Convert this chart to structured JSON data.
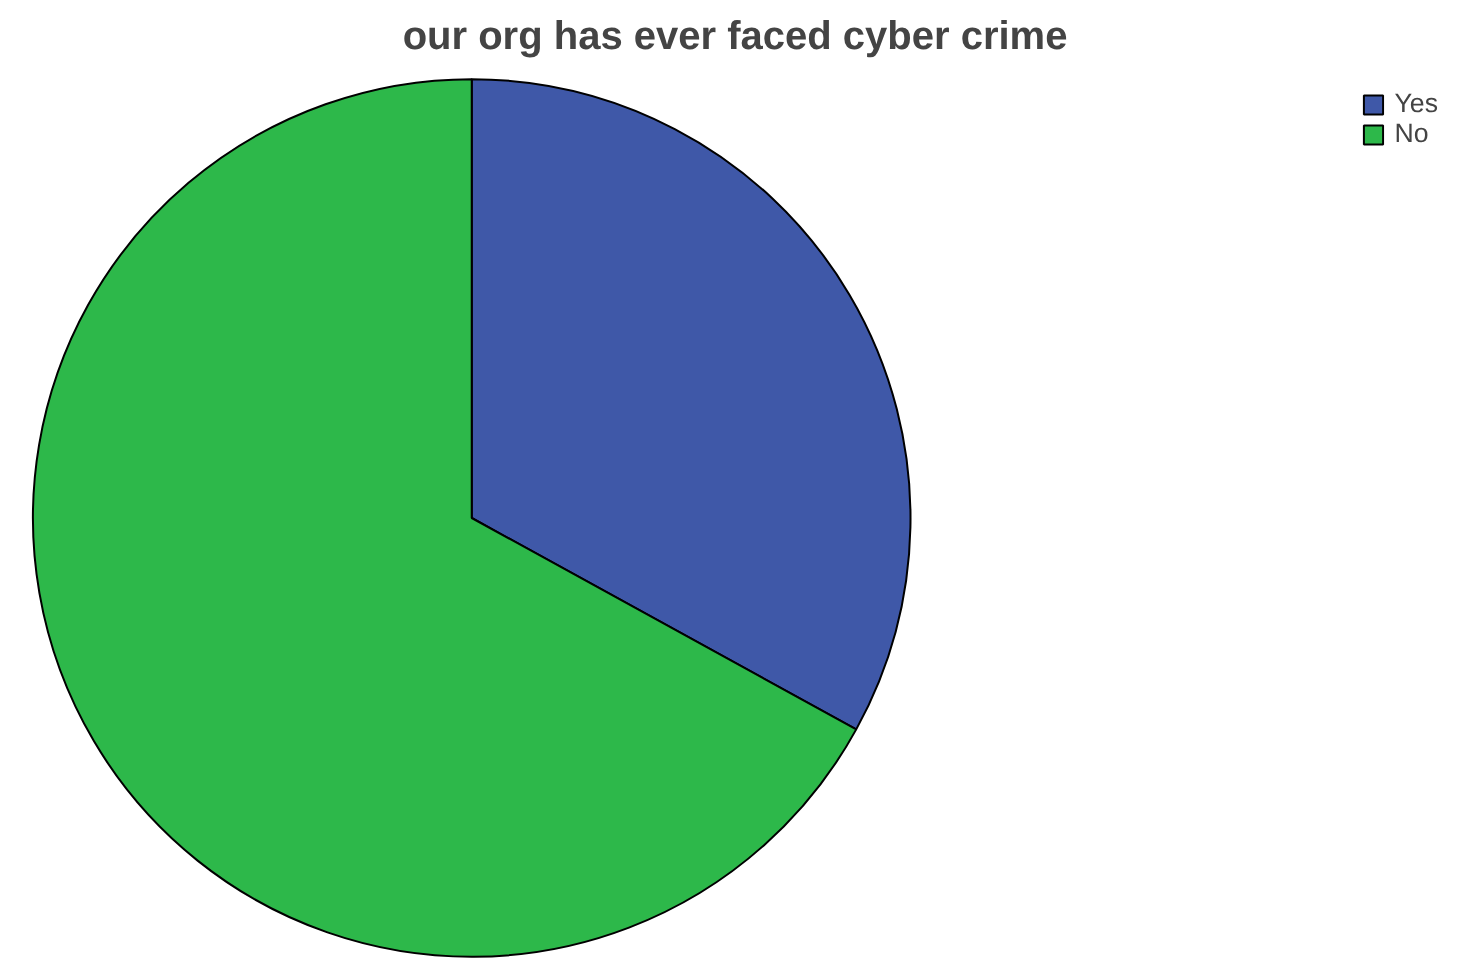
{
  "chart_data": {
    "type": "pie",
    "title": "our org has ever faced cyber crime",
    "categories": [
      "Yes",
      "No"
    ],
    "values": [
      33,
      67
    ],
    "colors": [
      "#3f58a8",
      "#2db84a"
    ],
    "legend": "top right"
  }
}
